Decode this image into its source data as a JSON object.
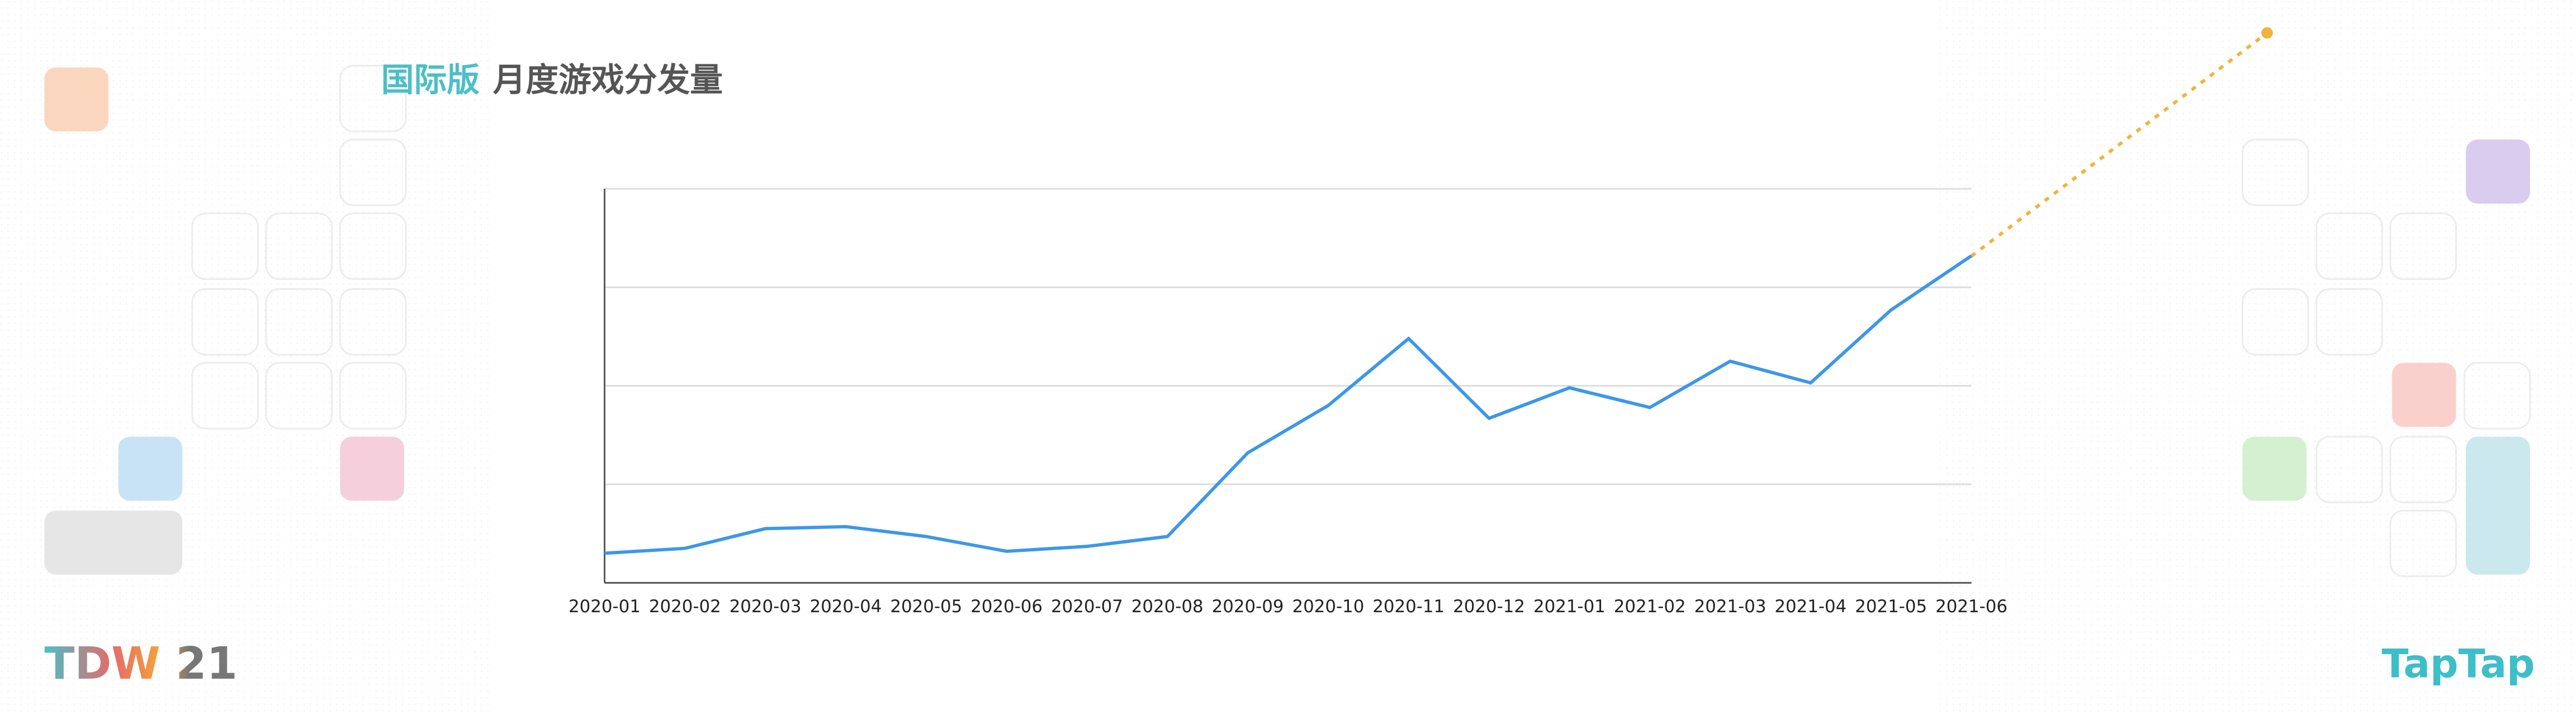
{
  "chart_data": {
    "type": "line",
    "title_highlight": "国际版",
    "title": "月度游戏分发量",
    "categories": [
      "2020-01",
      "2020-02",
      "2020-03",
      "2020-04",
      "2020-05",
      "2020-06",
      "2020-07",
      "2020-08",
      "2020-09",
      "2020-10",
      "2020-11",
      "2020-12",
      "2021-01",
      "2021-02",
      "2021-03",
      "2021-04",
      "2021-05",
      "2021-06"
    ],
    "values": [
      0.3,
      0.35,
      0.55,
      0.57,
      0.47,
      0.32,
      0.37,
      0.47,
      1.32,
      1.8,
      2.48,
      1.67,
      1.98,
      1.78,
      2.25,
      2.03,
      2.77,
      3.32
    ],
    "color": "#3d97e8",
    "ylim": [
      0,
      4
    ],
    "yticks": [
      0,
      1,
      2,
      3,
      4
    ],
    "show_ytick_labels": false,
    "grid": true
  },
  "branding": {
    "left": "TDW 21",
    "right": "TapTap"
  }
}
